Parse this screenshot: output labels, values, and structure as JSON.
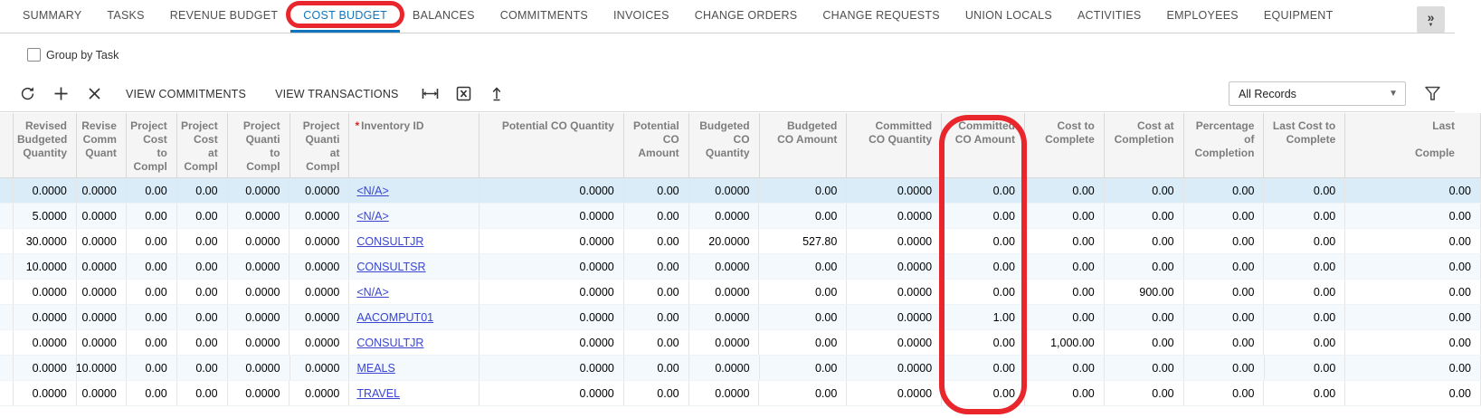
{
  "tabs": {
    "items": [
      "SUMMARY",
      "TASKS",
      "REVENUE BUDGET",
      "COST BUDGET",
      "BALANCES",
      "COMMITMENTS",
      "INVOICES",
      "CHANGE ORDERS",
      "CHANGE REQUESTS",
      "UNION LOCALS",
      "ACTIVITIES",
      "EMPLOYEES",
      "EQUIPMENT"
    ],
    "selected": "COST BUDGET",
    "overflow_glyph": "»"
  },
  "options": {
    "group_by_task": {
      "label": "Group by Task",
      "checked": false
    }
  },
  "toolbar": {
    "refresh_icon": "refresh",
    "add_icon": "plus",
    "delete_icon": "x",
    "view_commitments_label": "VIEW COMMITMENTS",
    "view_transactions_label": "VIEW TRANSACTIONS",
    "fit_width_icon": "fit-to-width",
    "export_icon": "export-to-excel",
    "upload_icon": "upload",
    "records_filter": {
      "value": "All Records"
    },
    "filter_icon": "funnel"
  },
  "grid": {
    "columns": [
      {
        "id": "sel",
        "lines": [],
        "align": "right"
      },
      {
        "id": "revisedBudgetedQty",
        "lines": [
          "Revised",
          "Budgeted",
          "Quantity"
        ],
        "align": "right"
      },
      {
        "id": "revisedCommittedQty",
        "lines": [
          "Revise",
          "Comm",
          "Quant"
        ],
        "align": "right"
      },
      {
        "id": "projectCostToComplete",
        "lines": [
          "Project",
          "Cost",
          "to",
          "Compl"
        ],
        "align": "right"
      },
      {
        "id": "projectCostAtCompletion",
        "lines": [
          "Project",
          "Cost",
          "at",
          "Compl"
        ],
        "align": "right"
      },
      {
        "id": "projectQtyToComplete",
        "lines": [
          "Project",
          "Quanti",
          "to",
          "Compl"
        ],
        "align": "right"
      },
      {
        "id": "projectQtyAtCompletion",
        "lines": [
          "Project",
          "Quanti",
          "at",
          "Compl"
        ],
        "align": "right"
      },
      {
        "id": "inventoryId",
        "lines": [
          "Inventory ID"
        ],
        "align": "left",
        "required": true,
        "link": true
      },
      {
        "id": "potentialCOQty",
        "lines": [
          "Potential CO Quantity"
        ],
        "align": "right"
      },
      {
        "id": "potentialCOAmount",
        "lines": [
          "Potential",
          "CO",
          "Amount"
        ],
        "align": "right"
      },
      {
        "id": "budgetedCOQty",
        "lines": [
          "Budgeted",
          "CO",
          "Quantity"
        ],
        "align": "right"
      },
      {
        "id": "budgetedCOAmount",
        "lines": [
          "Budgeted",
          "CO Amount"
        ],
        "align": "right"
      },
      {
        "id": "committedCOQty",
        "lines": [
          "Committed",
          "CO Quantity"
        ],
        "align": "right"
      },
      {
        "id": "committedCOAmount",
        "lines": [
          "Committed",
          "CO Amount"
        ],
        "align": "right"
      },
      {
        "id": "costToComplete",
        "lines": [
          "Cost to",
          "Complete"
        ],
        "align": "right"
      },
      {
        "id": "costAtCompletion",
        "lines": [
          "Cost at",
          "Completion"
        ],
        "align": "right"
      },
      {
        "id": "percentageOfCompletion",
        "lines": [
          "Percentage",
          "of",
          "Completion"
        ],
        "align": "right"
      },
      {
        "id": "lastCostToComplete",
        "lines": [
          "Last Cost to",
          "Complete"
        ],
        "align": "right"
      },
      {
        "id": "lastCostAtCompletion",
        "lines": [
          "Last",
          "",
          "Comple"
        ],
        "align": "right",
        "clipped": true
      }
    ],
    "rows": [
      {
        "selected": true,
        "revisedBudgetedQty": "0.0000",
        "revisedCommittedQty": "0.0000",
        "projectCostToComplete": "0.00",
        "projectCostAtCompletion": "0.00",
        "projectQtyToComplete": "0.0000",
        "projectQtyAtCompletion": "0.0000",
        "inventoryId": "<N/A>",
        "potentialCOQty": "0.0000",
        "potentialCOAmount": "0.00",
        "budgetedCOQty": "0.0000",
        "budgetedCOAmount": "0.00",
        "committedCOQty": "0.0000",
        "committedCOAmount": "0.00",
        "costToComplete": "0.00",
        "costAtCompletion": "0.00",
        "percentageOfCompletion": "0.00",
        "lastCostToComplete": "0.00",
        "lastCostAtCompletion": "0.00"
      },
      {
        "selected": false,
        "revisedBudgetedQty": "5.0000",
        "revisedCommittedQty": "0.0000",
        "projectCostToComplete": "0.00",
        "projectCostAtCompletion": "0.00",
        "projectQtyToComplete": "0.0000",
        "projectQtyAtCompletion": "0.0000",
        "inventoryId": "<N/A>",
        "potentialCOQty": "0.0000",
        "potentialCOAmount": "0.00",
        "budgetedCOQty": "0.0000",
        "budgetedCOAmount": "0.00",
        "committedCOQty": "0.0000",
        "committedCOAmount": "0.00",
        "costToComplete": "0.00",
        "costAtCompletion": "0.00",
        "percentageOfCompletion": "0.00",
        "lastCostToComplete": "0.00",
        "lastCostAtCompletion": "0.00"
      },
      {
        "selected": false,
        "revisedBudgetedQty": "30.0000",
        "revisedCommittedQty": "0.0000",
        "projectCostToComplete": "0.00",
        "projectCostAtCompletion": "0.00",
        "projectQtyToComplete": "0.0000",
        "projectQtyAtCompletion": "0.0000",
        "inventoryId": "CONSULTJR",
        "potentialCOQty": "0.0000",
        "potentialCOAmount": "0.00",
        "budgetedCOQty": "20.0000",
        "budgetedCOAmount": "527.80",
        "committedCOQty": "0.0000",
        "committedCOAmount": "0.00",
        "costToComplete": "0.00",
        "costAtCompletion": "0.00",
        "percentageOfCompletion": "0.00",
        "lastCostToComplete": "0.00",
        "lastCostAtCompletion": "0.00"
      },
      {
        "selected": false,
        "revisedBudgetedQty": "10.0000",
        "revisedCommittedQty": "0.0000",
        "projectCostToComplete": "0.00",
        "projectCostAtCompletion": "0.00",
        "projectQtyToComplete": "0.0000",
        "projectQtyAtCompletion": "0.0000",
        "inventoryId": "CONSULTSR",
        "potentialCOQty": "0.0000",
        "potentialCOAmount": "0.00",
        "budgetedCOQty": "0.0000",
        "budgetedCOAmount": "0.00",
        "committedCOQty": "0.0000",
        "committedCOAmount": "0.00",
        "costToComplete": "0.00",
        "costAtCompletion": "0.00",
        "percentageOfCompletion": "0.00",
        "lastCostToComplete": "0.00",
        "lastCostAtCompletion": "0.00"
      },
      {
        "selected": false,
        "revisedBudgetedQty": "0.0000",
        "revisedCommittedQty": "0.0000",
        "projectCostToComplete": "0.00",
        "projectCostAtCompletion": "0.00",
        "projectQtyToComplete": "0.0000",
        "projectQtyAtCompletion": "0.0000",
        "inventoryId": "<N/A>",
        "potentialCOQty": "0.0000",
        "potentialCOAmount": "0.00",
        "budgetedCOQty": "0.0000",
        "budgetedCOAmount": "0.00",
        "committedCOQty": "0.0000",
        "committedCOAmount": "0.00",
        "costToComplete": "0.00",
        "costAtCompletion": "900.00",
        "percentageOfCompletion": "0.00",
        "lastCostToComplete": "0.00",
        "lastCostAtCompletion": "0.00"
      },
      {
        "selected": false,
        "revisedBudgetedQty": "0.0000",
        "revisedCommittedQty": "0.0000",
        "projectCostToComplete": "0.00",
        "projectCostAtCompletion": "0.00",
        "projectQtyToComplete": "0.0000",
        "projectQtyAtCompletion": "0.0000",
        "inventoryId": "AACOMPUT01",
        "potentialCOQty": "0.0000",
        "potentialCOAmount": "0.00",
        "budgetedCOQty": "0.0000",
        "budgetedCOAmount": "0.00",
        "committedCOQty": "0.0000",
        "committedCOAmount": "1.00",
        "costToComplete": "0.00",
        "costAtCompletion": "0.00",
        "percentageOfCompletion": "0.00",
        "lastCostToComplete": "0.00",
        "lastCostAtCompletion": "0.00"
      },
      {
        "selected": false,
        "revisedBudgetedQty": "0.0000",
        "revisedCommittedQty": "0.0000",
        "projectCostToComplete": "0.00",
        "projectCostAtCompletion": "0.00",
        "projectQtyToComplete": "0.0000",
        "projectQtyAtCompletion": "0.0000",
        "inventoryId": "CONSULTJR",
        "potentialCOQty": "0.0000",
        "potentialCOAmount": "0.00",
        "budgetedCOQty": "0.0000",
        "budgetedCOAmount": "0.00",
        "committedCOQty": "0.0000",
        "committedCOAmount": "0.00",
        "costToComplete": "1,000.00",
        "costAtCompletion": "0.00",
        "percentageOfCompletion": "0.00",
        "lastCostToComplete": "0.00",
        "lastCostAtCompletion": "0.00"
      },
      {
        "selected": false,
        "revisedBudgetedQty": "0.0000",
        "revisedCommittedQty": "10.0000",
        "projectCostToComplete": "0.00",
        "projectCostAtCompletion": "0.00",
        "projectQtyToComplete": "0.0000",
        "projectQtyAtCompletion": "0.0000",
        "inventoryId": "MEALS",
        "potentialCOQty": "0.0000",
        "potentialCOAmount": "0.00",
        "budgetedCOQty": "0.0000",
        "budgetedCOAmount": "0.00",
        "committedCOQty": "0.0000",
        "committedCOAmount": "0.00",
        "costToComplete": "0.00",
        "costAtCompletion": "0.00",
        "percentageOfCompletion": "0.00",
        "lastCostToComplete": "0.00",
        "lastCostAtCompletion": "0.00"
      },
      {
        "selected": false,
        "revisedBudgetedQty": "0.0000",
        "revisedCommittedQty": "0.0000",
        "projectCostToComplete": "0.00",
        "projectCostAtCompletion": "0.00",
        "projectQtyToComplete": "0.0000",
        "projectQtyAtCompletion": "0.0000",
        "inventoryId": "TRAVEL",
        "potentialCOQty": "0.0000",
        "potentialCOAmount": "0.00",
        "budgetedCOQty": "0.0000",
        "budgetedCOAmount": "0.00",
        "committedCOQty": "0.0000",
        "committedCOAmount": "0.00",
        "costToComplete": "0.00",
        "costAtCompletion": "0.00",
        "percentageOfCompletion": "0.00",
        "lastCostToComplete": "0.00",
        "lastCostAtCompletion": "0.00"
      }
    ]
  },
  "annotations": {
    "color": "#e8262b",
    "circled_tab": "COST BUDGET",
    "circled_column": "Committed CO Amount"
  },
  "colors": {
    "accent_blue": "#1075bd",
    "link_blue": "#3a45d2",
    "selected_row": "#d9ecf8",
    "annotation_red": "#e8262b"
  }
}
